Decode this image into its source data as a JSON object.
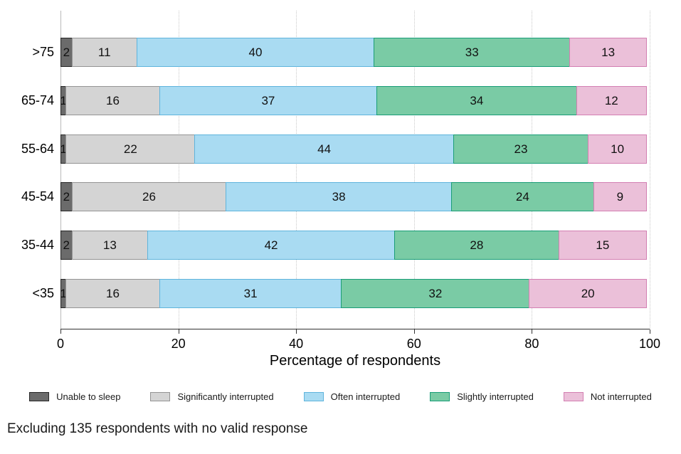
{
  "chart_data": {
    "type": "bar",
    "orientation": "horizontal-stacked",
    "title": "",
    "xlabel": "Percentage of respondents",
    "ylabel": "",
    "xlim": [
      0,
      100
    ],
    "x_ticks": [
      0,
      20,
      40,
      60,
      80,
      100
    ],
    "grid": "vertical-dotted",
    "legend_position": "bottom",
    "categories": [
      ">75",
      "65-74",
      "55-64",
      "45-54",
      "35-44",
      "<35"
    ],
    "series": [
      {
        "name": "Unable to sleep",
        "fill": "#6b6b6b",
        "border": "#262626",
        "values": [
          2,
          1,
          1,
          2,
          2,
          1
        ]
      },
      {
        "name": "Significantly interrupted",
        "fill": "#d4d4d4",
        "border": "#949494",
        "values": [
          11,
          16,
          22,
          26,
          13,
          16
        ]
      },
      {
        "name": "Often interrupted",
        "fill": "#a9dbf2",
        "border": "#5fb4dc",
        "values": [
          40,
          37,
          44,
          38,
          42,
          31
        ]
      },
      {
        "name": "Slightly interrupted",
        "fill": "#7acba5",
        "border": "#199d77",
        "values": [
          33,
          34,
          23,
          24,
          28,
          32
        ]
      },
      {
        "name": "Not interrupted",
        "fill": "#ebc0d9",
        "border": "#d37fb2",
        "values": [
          13,
          12,
          10,
          9,
          15,
          20
        ]
      }
    ],
    "note": "Excluding 135 respondents with no valid response"
  }
}
